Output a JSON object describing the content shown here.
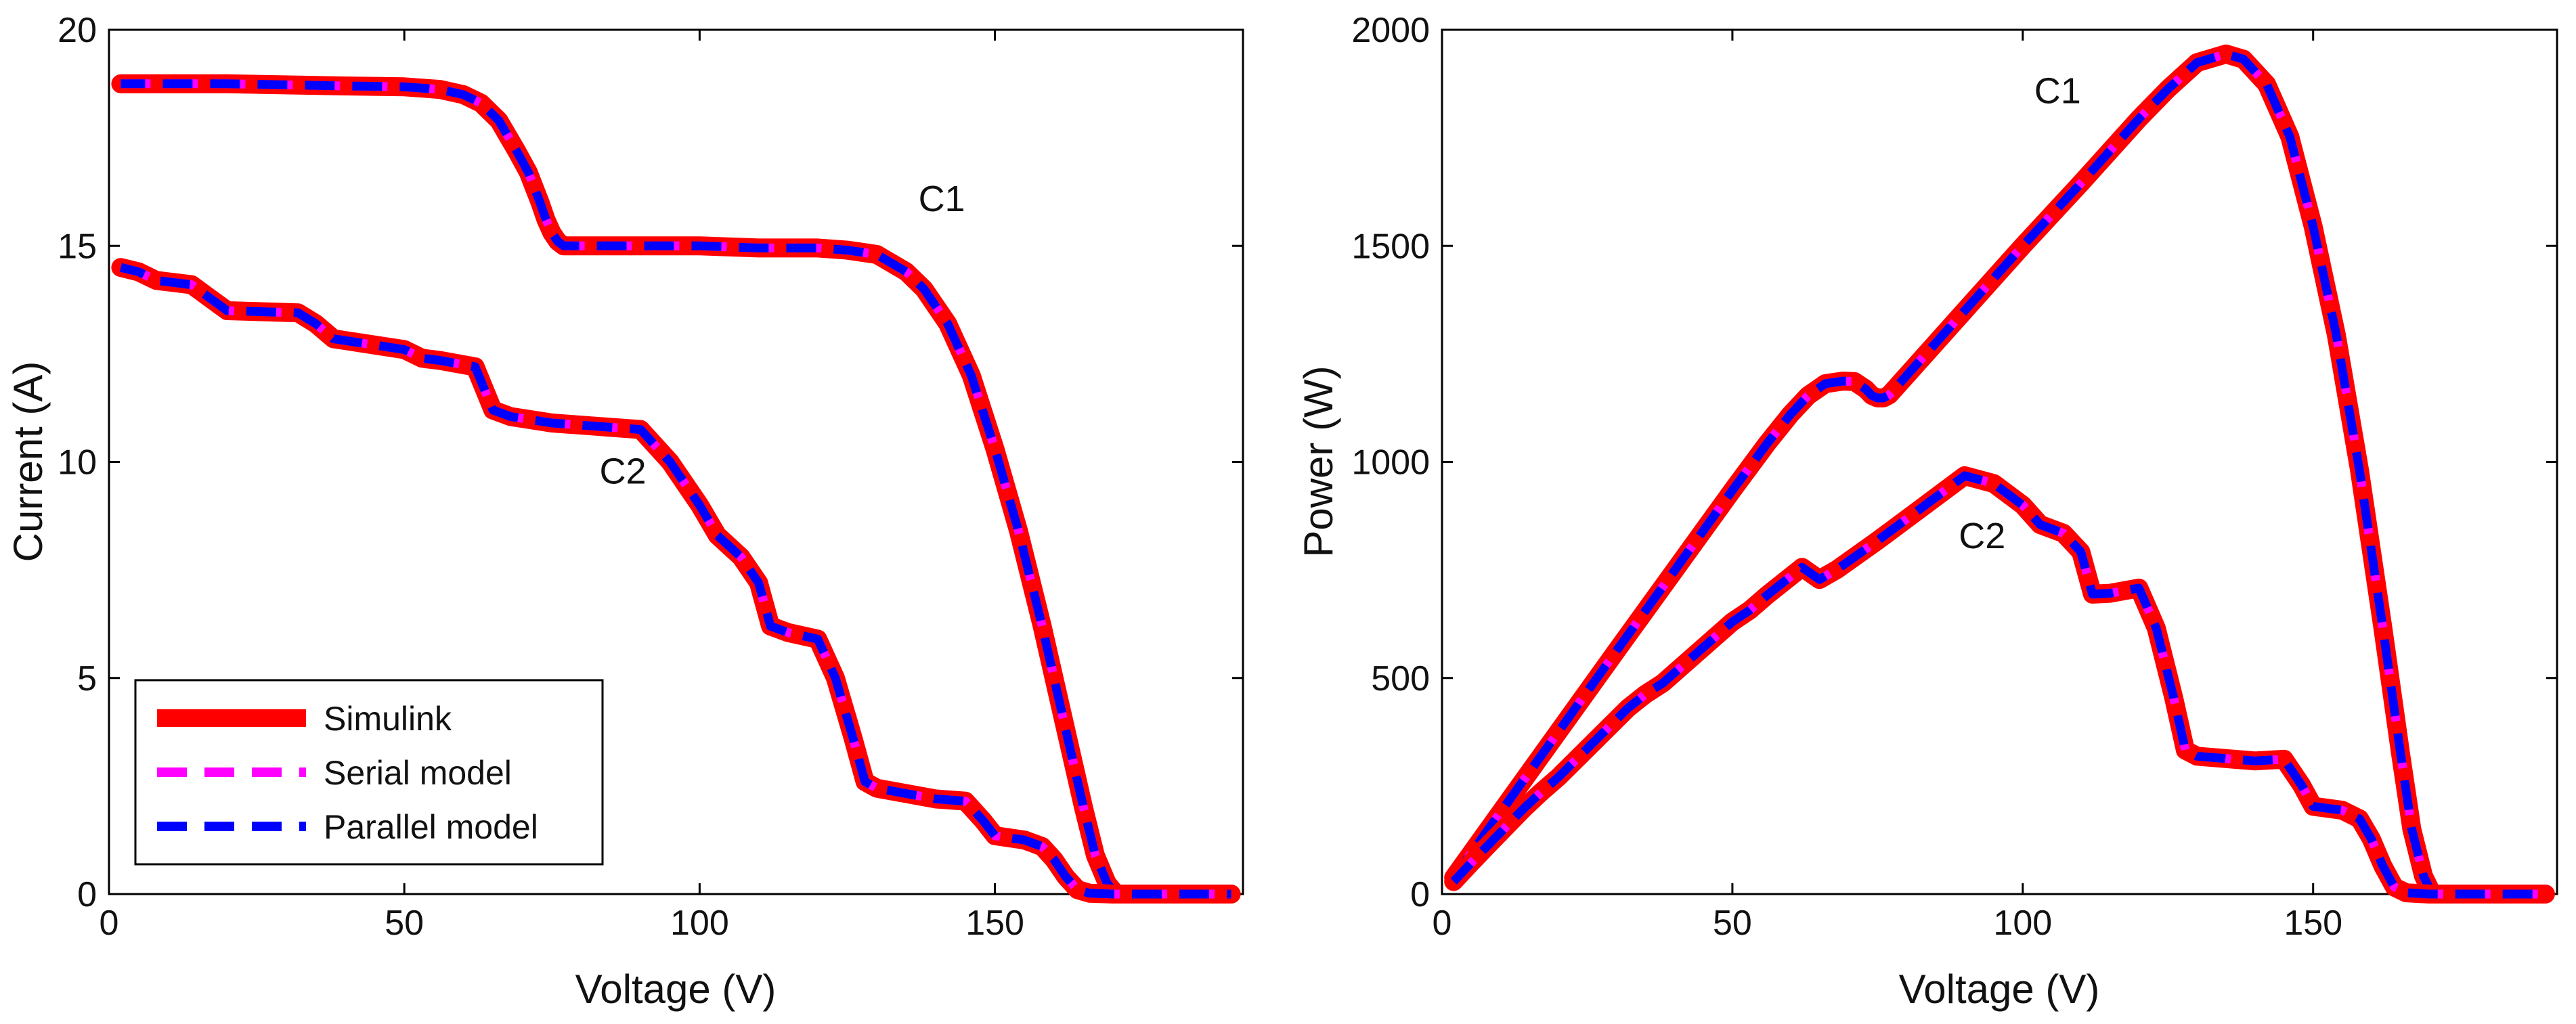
{
  "legend": {
    "simulink": "Simulink",
    "serial": "Serial model",
    "parallel": "Parallel model"
  },
  "colors": {
    "simulink": "#ff0000",
    "serial": "#ff00ff",
    "parallel": "#0000ff",
    "axis": "#000000"
  },
  "chart_data": [
    {
      "type": "line",
      "title": "",
      "xlabel": "Voltage (V)",
      "ylabel": "Current (A)",
      "xlim": [
        0,
        192
      ],
      "ylim": [
        0,
        20
      ],
      "xticks": [
        0,
        50,
        100,
        150
      ],
      "yticks": [
        0,
        5,
        10,
        15,
        20
      ],
      "legend_location": "bottom-left",
      "grid": false,
      "annotations": [
        {
          "text": "C1",
          "x": 141,
          "y": 15.8
        },
        {
          "text": "C2",
          "x": 87,
          "y": 9.5
        }
      ],
      "series": [
        {
          "name": "C1",
          "x": [
            2,
            20,
            40,
            50,
            56,
            60,
            63,
            66,
            69,
            71,
            73,
            74,
            75,
            76,
            77,
            78,
            80,
            90,
            100,
            110,
            120,
            125,
            130,
            135,
            138,
            142,
            146,
            150,
            154,
            158,
            162,
            165,
            167,
            169,
            170.5,
            172,
            175,
            190
          ],
          "y": [
            18.75,
            18.75,
            18.7,
            18.68,
            18.62,
            18.5,
            18.3,
            17.9,
            17.2,
            16.7,
            16.0,
            15.6,
            15.3,
            15.1,
            15.0,
            15.0,
            15.0,
            15.0,
            15.0,
            14.95,
            14.95,
            14.9,
            14.8,
            14.4,
            14.0,
            13.2,
            12.0,
            10.3,
            8.4,
            6.2,
            3.8,
            2.0,
            0.9,
            0.25,
            0,
            0,
            0,
            0
          ]
        },
        {
          "name": "C2",
          "x": [
            2,
            5,
            8,
            14,
            17,
            20,
            32,
            35,
            38,
            50,
            53,
            56,
            62,
            65,
            68,
            75,
            80,
            90,
            95,
            100,
            103,
            107,
            110,
            112,
            115,
            120,
            123,
            126,
            128,
            130,
            140,
            145,
            148,
            150,
            155,
            158,
            160,
            162,
            164,
            166,
            170,
            190
          ],
          "y": [
            14.5,
            14.4,
            14.2,
            14.1,
            13.8,
            13.5,
            13.45,
            13.2,
            12.85,
            12.6,
            12.4,
            12.35,
            12.2,
            11.2,
            11.05,
            10.9,
            10.85,
            10.75,
            10.0,
            9.0,
            8.3,
            7.8,
            7.2,
            6.2,
            6.05,
            5.9,
            5.0,
            3.6,
            2.6,
            2.45,
            2.2,
            2.15,
            1.7,
            1.35,
            1.25,
            1.1,
            0.8,
            0.4,
            0.1,
            0.02,
            0,
            0
          ]
        }
      ]
    },
    {
      "type": "line",
      "title": "",
      "xlabel": "Voltage (V)",
      "ylabel": "Power (W)",
      "xlim": [
        0,
        192
      ],
      "ylim": [
        0,
        2000
      ],
      "xticks": [
        0,
        50,
        100,
        150
      ],
      "yticks": [
        0,
        500,
        1000,
        1500,
        2000
      ],
      "grid": false,
      "annotations": [
        {
          "text": "C1",
          "x": 106,
          "y": 1830
        },
        {
          "text": "C2",
          "x": 93,
          "y": 800
        }
      ],
      "series": [
        {
          "name": "C1",
          "x": [
            2,
            10,
            20,
            30,
            40,
            50,
            56,
            60,
            63,
            66,
            69,
            71,
            73,
            74,
            75,
            76,
            77,
            78,
            80,
            90,
            100,
            110,
            120,
            125,
            130,
            135,
            138,
            142,
            146,
            150,
            154,
            158,
            162,
            165,
            167,
            169,
            170.5,
            172,
            175,
            190
          ],
          "y": [
            38,
            188,
            375,
            562,
            748,
            934,
            1043,
            1110,
            1153,
            1181,
            1187,
            1186,
            1168,
            1154,
            1148,
            1148,
            1155,
            1170,
            1200,
            1350,
            1500,
            1645,
            1794,
            1863,
            1924,
            1944,
            1932,
            1874,
            1752,
            1545,
            1294,
            980,
            616,
            330,
            150,
            42,
            0,
            0,
            0,
            0
          ]
        },
        {
          "name": "C2",
          "x": [
            2,
            5,
            8,
            14,
            17,
            20,
            32,
            35,
            38,
            50,
            53,
            56,
            62,
            65,
            68,
            75,
            80,
            90,
            95,
            100,
            103,
            107,
            110,
            112,
            115,
            120,
            123,
            126,
            128,
            130,
            140,
            145,
            148,
            150,
            155,
            158,
            160,
            162,
            164,
            166,
            170,
            190
          ],
          "y": [
            29,
            72,
            114,
            197,
            235,
            270,
            430,
            462,
            488,
            630,
            657,
            692,
            756,
            728,
            751,
            818,
            868,
            968,
            950,
            900,
            855,
            835,
            792,
            694,
            696,
            708,
            615,
            454,
            333,
            319,
            308,
            312,
            252,
            203,
            194,
            174,
            128,
            65,
            16,
            3,
            0,
            0
          ]
        }
      ]
    }
  ]
}
